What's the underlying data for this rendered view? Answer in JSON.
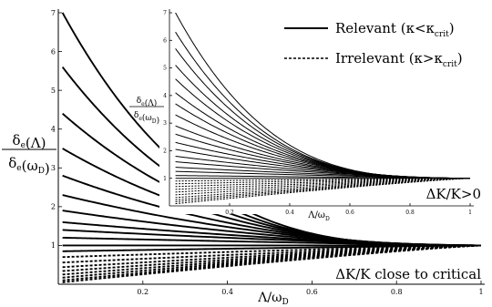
{
  "chart_data": [
    {
      "type": "line",
      "role": "main",
      "xlabel": "Λ/ω_D",
      "ylabel_num": "δ_e(Λ)",
      "ylabel_den": "δ_e(ω_D)",
      "xlim": [
        0,
        1
      ],
      "ylim": [
        0,
        7
      ],
      "xticks": [
        "0.2",
        "0.4",
        "0.6",
        "0.8",
        "1"
      ],
      "xtick_values": [
        0.2,
        0.4,
        0.6,
        0.8,
        1.0
      ],
      "yticks": [
        "1",
        "2",
        "3",
        "4",
        "5",
        "6",
        "7"
      ],
      "ytick_values": [
        1,
        2,
        3,
        4,
        5,
        6,
        7
      ],
      "annotation": "ΔK/K close to critical",
      "x_min_curve": 0.01,
      "series": [
        {
          "style": "solid",
          "y_at_x_min": 7.0
        },
        {
          "style": "solid",
          "y_at_x_min": 5.6
        },
        {
          "style": "solid",
          "y_at_x_min": 4.4
        },
        {
          "style": "solid",
          "y_at_x_min": 3.5
        },
        {
          "style": "solid",
          "y_at_x_min": 2.8
        },
        {
          "style": "solid",
          "y_at_x_min": 2.3
        },
        {
          "style": "solid",
          "y_at_x_min": 1.9
        },
        {
          "style": "solid",
          "y_at_x_min": 1.6
        },
        {
          "style": "solid",
          "y_at_x_min": 1.4
        },
        {
          "style": "solid",
          "y_at_x_min": 1.2
        },
        {
          "style": "solid",
          "y_at_x_min": 1.0
        },
        {
          "style": "solid",
          "y_at_x_min": 0.85
        },
        {
          "style": "dashed",
          "y_at_x_min": 0.7
        },
        {
          "style": "dashed",
          "y_at_x_min": 0.56
        },
        {
          "style": "dashed",
          "y_at_x_min": 0.44
        },
        {
          "style": "dashed",
          "y_at_x_min": 0.34
        },
        {
          "style": "dashed",
          "y_at_x_min": 0.25
        },
        {
          "style": "dashed",
          "y_at_x_min": 0.17
        },
        {
          "style": "dashed",
          "y_at_x_min": 0.1
        },
        {
          "style": "dashed",
          "y_at_x_min": 0.05
        }
      ]
    },
    {
      "type": "line",
      "role": "inset",
      "xlabel": "Λ/ω_D",
      "ylabel_num": "δ_e(Λ)",
      "ylabel_den": "δ_e(ω_D)",
      "xlim": [
        0,
        1
      ],
      "ylim": [
        0,
        7
      ],
      "xticks": [
        "0.2",
        "0.4",
        "0.6",
        "0.8",
        "1"
      ],
      "xtick_values": [
        0.2,
        0.4,
        0.6,
        0.8,
        1.0
      ],
      "yticks": [
        "1",
        "2",
        "3",
        "4",
        "5",
        "6",
        "7"
      ],
      "ytick_values": [
        1,
        2,
        3,
        4,
        5,
        6,
        7
      ],
      "annotation": "ΔK/K>0",
      "x_min_curve": 0.02,
      "series": [
        {
          "style": "solid",
          "y_at_x_min": 7.0
        },
        {
          "style": "solid",
          "y_at_x_min": 6.3
        },
        {
          "style": "solid",
          "y_at_x_min": 5.7
        },
        {
          "style": "solid",
          "y_at_x_min": 5.1
        },
        {
          "style": "solid",
          "y_at_x_min": 4.6
        },
        {
          "style": "solid",
          "y_at_x_min": 4.1
        },
        {
          "style": "solid",
          "y_at_x_min": 3.7
        },
        {
          "style": "solid",
          "y_at_x_min": 3.3
        },
        {
          "style": "solid",
          "y_at_x_min": 2.9
        },
        {
          "style": "solid",
          "y_at_x_min": 2.6
        },
        {
          "style": "solid",
          "y_at_x_min": 2.3
        },
        {
          "style": "solid",
          "y_at_x_min": 2.05
        },
        {
          "style": "solid",
          "y_at_x_min": 1.8
        },
        {
          "style": "solid",
          "y_at_x_min": 1.6
        },
        {
          "style": "solid",
          "y_at_x_min": 1.4
        },
        {
          "style": "solid",
          "y_at_x_min": 1.25
        },
        {
          "style": "solid",
          "y_at_x_min": 1.1
        },
        {
          "style": "solid",
          "y_at_x_min": 1.0
        },
        {
          "style": "dashed",
          "y_at_x_min": 0.9
        },
        {
          "style": "dashed",
          "y_at_x_min": 0.8
        },
        {
          "style": "dashed",
          "y_at_x_min": 0.7
        },
        {
          "style": "dashed",
          "y_at_x_min": 0.6
        },
        {
          "style": "dashed",
          "y_at_x_min": 0.5
        },
        {
          "style": "dashed",
          "y_at_x_min": 0.4
        },
        {
          "style": "dashed",
          "y_at_x_min": 0.3
        },
        {
          "style": "dashed",
          "y_at_x_min": 0.22
        },
        {
          "style": "dashed",
          "y_at_x_min": 0.15
        },
        {
          "style": "dashed",
          "y_at_x_min": 0.08
        }
      ]
    }
  ],
  "legend": {
    "placement": "top-right",
    "items": [
      {
        "style": "solid",
        "label": "Relevant (κ<κ",
        "sub": "crit",
        "close": ")"
      },
      {
        "style": "dashed",
        "label": "Irrelevant (κ>κ",
        "sub": "crit",
        "close": ")"
      }
    ]
  },
  "colors": {
    "line": "#000000",
    "background": "#ffffff"
  }
}
